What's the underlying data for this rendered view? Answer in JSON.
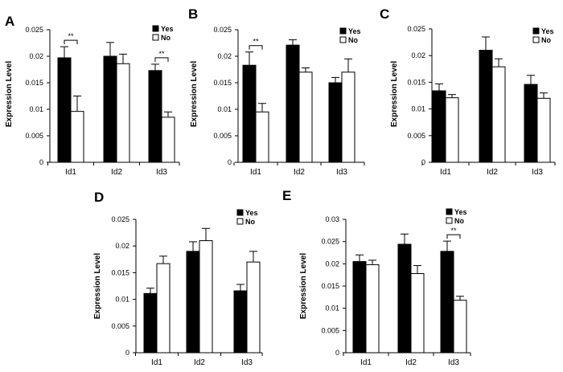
{
  "chart_data": [
    {
      "type": "bar",
      "panel": "A",
      "ylabel": "Expression Level",
      "ylim": [
        0,
        0.025
      ],
      "yticks": [
        "0",
        "0.005",
        "0.01",
        "0.015",
        "0.02",
        "0.025"
      ],
      "categories": [
        "Id1",
        "Id2",
        "Id3"
      ],
      "series": [
        {
          "name": "Yes",
          "values": [
            0.0197,
            0.02,
            0.0173
          ],
          "errors": [
            0.0021,
            0.0026,
            0.0012
          ],
          "color": "#000000"
        },
        {
          "name": "No",
          "values": [
            0.0096,
            0.0186,
            0.0085
          ],
          "errors": [
            0.0029,
            0.0018,
            0.001
          ],
          "color": "#ffffff"
        }
      ],
      "significance": [
        {
          "category": 0,
          "label": "**"
        },
        {
          "category": 2,
          "label": "**"
        }
      ]
    },
    {
      "type": "bar",
      "panel": "B",
      "ylabel": "Expression Level",
      "ylim": [
        0,
        0.025
      ],
      "yticks": [
        "0",
        "0.005",
        "0.01",
        "0.015",
        "0.02",
        "0.025"
      ],
      "categories": [
        "Id1",
        "Id2",
        "Id3"
      ],
      "series": [
        {
          "name": "Yes",
          "values": [
            0.0183,
            0.0221,
            0.015
          ],
          "errors": [
            0.0025,
            0.001,
            0.001
          ],
          "color": "#000000"
        },
        {
          "name": "No",
          "values": [
            0.0095,
            0.017,
            0.017
          ],
          "errors": [
            0.0016,
            0.0008,
            0.0025
          ],
          "color": "#ffffff"
        }
      ],
      "significance": [
        {
          "category": 0,
          "label": "**"
        }
      ]
    },
    {
      "type": "bar",
      "panel": "C",
      "ylabel": "Expression Level",
      "ylim": [
        0,
        0.025
      ],
      "yticks": [
        "0",
        "0.005",
        "0.01",
        "0.015",
        "0.02",
        "0.025"
      ],
      "categories": [
        "Id1",
        "Id2",
        "Id3"
      ],
      "series": [
        {
          "name": "Yes",
          "values": [
            0.0134,
            0.021,
            0.0146
          ],
          "errors": [
            0.0013,
            0.0025,
            0.0017
          ],
          "color": "#000000"
        },
        {
          "name": "No",
          "values": [
            0.0121,
            0.0179,
            0.012
          ],
          "errors": [
            0.0006,
            0.0015,
            0.001
          ],
          "color": "#ffffff"
        }
      ],
      "significance": []
    },
    {
      "type": "bar",
      "panel": "D",
      "ylabel": "Expression Level",
      "ylim": [
        0,
        0.025
      ],
      "yticks": [
        "0",
        "0.005",
        "0.01",
        "0.015",
        "0.02",
        "0.025"
      ],
      "categories": [
        "Id1",
        "Id2",
        "Id3"
      ],
      "series": [
        {
          "name": "Yes",
          "values": [
            0.0111,
            0.019,
            0.0116
          ],
          "errors": [
            0.001,
            0.0018,
            0.0012
          ],
          "color": "#000000"
        },
        {
          "name": "No",
          "values": [
            0.0167,
            0.021,
            0.017
          ],
          "errors": [
            0.0014,
            0.0023,
            0.002
          ],
          "color": "#ffffff"
        }
      ],
      "significance": []
    },
    {
      "type": "bar",
      "panel": "E",
      "ylabel": "Expression Level",
      "ylim": [
        0,
        0.03
      ],
      "yticks": [
        "0",
        "0.005",
        "0.01",
        "0.015",
        "0.02",
        "0.025",
        "0.03"
      ],
      "categories": [
        "Id1",
        "Id2",
        "Id3"
      ],
      "series": [
        {
          "name": "Yes",
          "values": [
            0.0205,
            0.0244,
            0.0228
          ],
          "errors": [
            0.0015,
            0.0023,
            0.0023
          ],
          "color": "#000000"
        },
        {
          "name": "No",
          "values": [
            0.0198,
            0.0178,
            0.0118
          ],
          "errors": [
            0.001,
            0.0018,
            0.0009
          ],
          "color": "#ffffff"
        }
      ],
      "significance": [
        {
          "category": 2,
          "label": "**"
        }
      ]
    }
  ]
}
